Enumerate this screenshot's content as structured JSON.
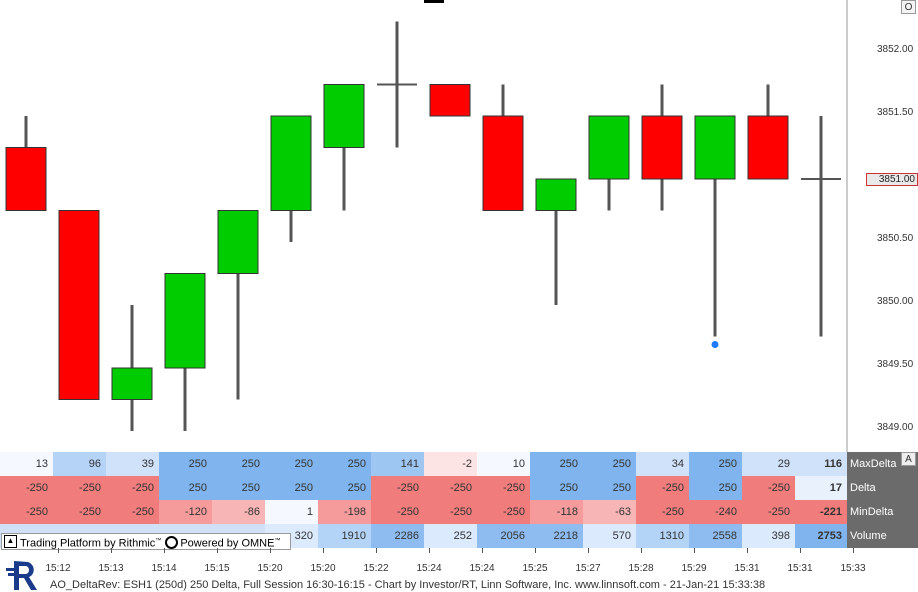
{
  "window_buttons": {
    "top_right": "O",
    "table_right": "A"
  },
  "price_axis": {
    "labels": [
      "3852.00",
      "3851.50",
      "3850.50",
      "3850.00",
      "3849.50",
      "3849.00"
    ],
    "current_price": "3851.00"
  },
  "chart_data": {
    "type": "candlestick",
    "columns": 16,
    "up_color": "#00cc00",
    "down_color": "#ff0000",
    "candles": [
      {
        "open": 3850.75,
        "high": 3851.5,
        "low": 3850.75,
        "close": 3851.25,
        "color": "red"
      },
      {
        "open": 3850.75,
        "high": 3850.75,
        "low": 3849.25,
        "close": 3849.25,
        "color": "red"
      },
      {
        "open": 3849.25,
        "high": 3850.0,
        "low": 3849.0,
        "close": 3849.5,
        "color": "green"
      },
      {
        "open": 3849.5,
        "high": 3850.25,
        "low": 3849.0,
        "close": 3850.25,
        "color": "green"
      },
      {
        "open": 3850.25,
        "high": 3850.75,
        "low": 3849.25,
        "close": 3850.75,
        "color": "green"
      },
      {
        "open": 3850.75,
        "high": 3851.5,
        "low": 3850.5,
        "close": 3851.5,
        "color": "green"
      },
      {
        "open": 3851.25,
        "high": 3851.75,
        "low": 3850.75,
        "close": 3851.75,
        "color": "green"
      },
      {
        "open": 3851.75,
        "high": 3852.25,
        "low": 3851.25,
        "close": 3851.75,
        "color": "doji"
      },
      {
        "open": 3851.75,
        "high": 3851.75,
        "low": 3851.5,
        "close": 3851.5,
        "color": "red"
      },
      {
        "open": 3851.5,
        "high": 3851.75,
        "low": 3850.75,
        "close": 3850.75,
        "color": "red"
      },
      {
        "open": 3850.75,
        "high": 3851.0,
        "low": 3850.0,
        "close": 3851.0,
        "color": "green"
      },
      {
        "open": 3851.0,
        "high": 3851.5,
        "low": 3850.75,
        "close": 3851.5,
        "color": "green"
      },
      {
        "open": 3851.5,
        "high": 3851.75,
        "low": 3850.75,
        "close": 3851.0,
        "color": "red"
      },
      {
        "open": 3851.0,
        "high": 3851.5,
        "low": 3849.75,
        "close": 3851.5,
        "color": "green",
        "dot": 3849.75
      },
      {
        "open": 3851.5,
        "high": 3851.75,
        "low": 3851.0,
        "close": 3851.0,
        "color": "red"
      },
      {
        "open": 3851.0,
        "high": 3851.5,
        "low": 3849.75,
        "close": 3851.0,
        "color": "doji"
      }
    ]
  },
  "table": {
    "rows": [
      {
        "label": "MaxDelta",
        "last": "116",
        "values": [
          "13",
          "96",
          "39",
          "250",
          "250",
          "250",
          "250",
          "141",
          "-2",
          "10",
          "250",
          "250",
          "34",
          "250",
          "29"
        ]
      },
      {
        "label": "Delta",
        "last": "17",
        "values": [
          "-250",
          "-250",
          "-250",
          "250",
          "250",
          "250",
          "250",
          "-250",
          "-250",
          "-250",
          "250",
          "250",
          "-250",
          "250",
          "-250"
        ]
      },
      {
        "label": "MinDelta",
        "last": "-221",
        "values": [
          "-250",
          "-250",
          "-250",
          "-120",
          "-86",
          "1",
          "-198",
          "-250",
          "-250",
          "-250",
          "-118",
          "-63",
          "-250",
          "-240",
          "-250"
        ]
      },
      {
        "label": "Volume",
        "last": "2753",
        "values": [
          "",
          "",
          "",
          "",
          "",
          "320",
          "1910",
          "2286",
          "252",
          "2056",
          "2218",
          "570",
          "1310",
          "2558",
          "398"
        ]
      }
    ]
  },
  "rithmic_bar": {
    "text1": "Trading Platform by Rithmic",
    "tm": "™",
    "text2": "Powered by OMNE",
    "tm2": "™"
  },
  "time_axis": {
    "labels": [
      "15:12",
      "15:13",
      "15:14",
      "15:15",
      "15:20",
      "15:20",
      "15:22",
      "15:24",
      "15:24",
      "15:25",
      "15:27",
      "15:28",
      "15:29",
      "15:31",
      "15:31",
      "15:33"
    ]
  },
  "footer": {
    "text": "AO_DeltaRev: ESH1 (250d) 250 Delta, Full Session 16:30-16:15 - Chart by Investor/RT, Linn Software, Inc. www.linnsoft.com - 21-Jan-21 15:33:38"
  }
}
